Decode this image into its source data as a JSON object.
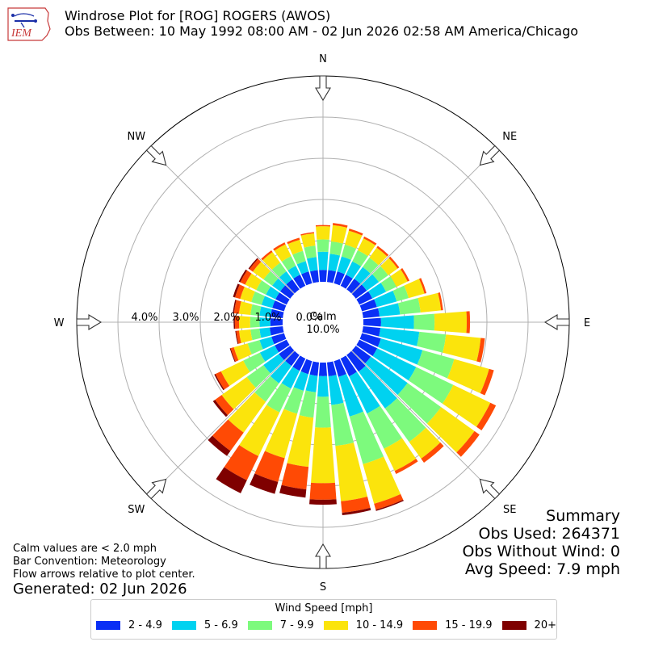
{
  "header": {
    "title": "Windrose Plot for [ROG] ROGERS (AWOS)",
    "subtitle": "Obs Between: 10 May 1992 08:00 AM - 02 Jun 2026 02:58 AM America/Chicago",
    "logo_text": "IEM"
  },
  "notes": {
    "calm_note": "Calm values are < 2.0 mph",
    "bar_convention": "Bar Convention: Meteorology",
    "flow_note": "Flow arrows relative to plot center.",
    "generated": "Generated: 02 Jun 2026"
  },
  "summary": {
    "heading": "Summary",
    "obs_used": "Obs Used: 264371",
    "obs_without_wind": "Obs Without Wind: 0",
    "avg_speed": "Avg Speed: 7.9 mph"
  },
  "legend": {
    "title": "Wind Speed [mph]",
    "items": [
      {
        "label": "2 - 4.9",
        "color": "#0a2ff5"
      },
      {
        "label": "5 - 6.9",
        "color": "#00d2f0"
      },
      {
        "label": "7 - 9.9",
        "color": "#7dfa7d"
      },
      {
        "label": "10 - 14.9",
        "color": "#fbe40c"
      },
      {
        "label": "15 - 19.9",
        "color": "#ff4a05"
      },
      {
        "label": "20+",
        "color": "#7f0000"
      }
    ]
  },
  "chart_data": {
    "type": "windrose",
    "calm_label": "Calm",
    "calm_value": "10.0%",
    "radial_tick_labels": [
      "0.0%",
      "1.0%",
      "2.0%",
      "3.0%",
      "4.0%"
    ],
    "radial_ticks": [
      0,
      1,
      2,
      3,
      4
    ],
    "rmax": 5,
    "directions": [
      "N",
      "NE",
      "E",
      "SE",
      "S",
      "SW",
      "W",
      "NW"
    ],
    "bin_labels": [
      "2 - 4.9",
      "5 - 6.9",
      "7 - 9.9",
      "10 - 14.9",
      "15 - 19.9",
      "20+"
    ],
    "sectors": [
      {
        "dir": 0,
        "values": [
          0.29,
          0.44,
          0.3,
          0.32,
          0.03,
          0.0
        ]
      },
      {
        "dir": 10,
        "values": [
          0.29,
          0.4,
          0.3,
          0.4,
          0.05,
          0.0
        ]
      },
      {
        "dir": 20,
        "values": [
          0.3,
          0.38,
          0.3,
          0.35,
          0.05,
          0.0
        ]
      },
      {
        "dir": 30,
        "values": [
          0.3,
          0.36,
          0.3,
          0.32,
          0.05,
          0.0
        ]
      },
      {
        "dir": 40,
        "values": [
          0.32,
          0.35,
          0.28,
          0.3,
          0.05,
          0.0
        ]
      },
      {
        "dir": 50,
        "values": [
          0.33,
          0.36,
          0.28,
          0.28,
          0.05,
          0.0
        ]
      },
      {
        "dir": 60,
        "values": [
          0.35,
          0.37,
          0.28,
          0.3,
          0.05,
          0.0
        ]
      },
      {
        "dir": 70,
        "values": [
          0.38,
          0.5,
          0.3,
          0.4,
          0.05,
          0.0
        ]
      },
      {
        "dir": 80,
        "values": [
          0.4,
          0.5,
          0.5,
          0.5,
          0.05,
          0.0
        ]
      },
      {
        "dir": 90,
        "values": [
          0.43,
          0.8,
          0.5,
          0.78,
          0.08,
          0.0
        ]
      },
      {
        "dir": 100,
        "values": [
          0.42,
          0.95,
          0.65,
          0.85,
          0.1,
          0.0
        ]
      },
      {
        "dir": 110,
        "values": [
          0.48,
          1.05,
          0.8,
          0.88,
          0.12,
          0.0
        ]
      },
      {
        "dir": 120,
        "values": [
          0.48,
          1.05,
          1.0,
          1.0,
          0.15,
          0.0
        ]
      },
      {
        "dir": 130,
        "values": [
          0.45,
          1.1,
          1.0,
          1.0,
          0.15,
          0.0
        ]
      },
      {
        "dir": 140,
        "values": [
          0.5,
          1.1,
          1.0,
          0.5,
          0.12,
          0.0
        ]
      },
      {
        "dir": 150,
        "values": [
          0.48,
          1.0,
          0.95,
          0.6,
          0.08,
          0.0
        ]
      },
      {
        "dir": 160,
        "values": [
          0.4,
          1.0,
          1.2,
          1.0,
          0.15,
          0.03
        ]
      },
      {
        "dir": 170,
        "values": [
          0.34,
          0.7,
          1.0,
          1.35,
          0.28,
          0.06
        ]
      },
      {
        "dir": 180,
        "values": [
          0.33,
          0.5,
          0.75,
          1.35,
          0.4,
          0.12
        ]
      },
      {
        "dir": 190,
        "values": [
          0.33,
          0.4,
          0.62,
          1.2,
          0.55,
          0.2
        ]
      },
      {
        "dir": 200,
        "values": [
          0.33,
          0.42,
          0.58,
          1.12,
          0.6,
          0.3
        ]
      },
      {
        "dir": 210,
        "values": [
          0.33,
          0.48,
          0.64,
          1.18,
          0.65,
          0.35
        ]
      },
      {
        "dir": 220,
        "values": [
          0.33,
          0.52,
          0.55,
          0.92,
          0.55,
          0.15
        ]
      },
      {
        "dir": 230,
        "values": [
          0.34,
          0.46,
          0.5,
          0.75,
          0.2,
          0.06
        ]
      },
      {
        "dir": 240,
        "values": [
          0.32,
          0.4,
          0.45,
          0.6,
          0.15,
          0.03
        ]
      },
      {
        "dir": 250,
        "values": [
          0.32,
          0.3,
          0.3,
          0.35,
          0.08,
          0.02
        ]
      },
      {
        "dir": 260,
        "values": [
          0.32,
          0.25,
          0.22,
          0.28,
          0.07,
          0.02
        ]
      },
      {
        "dir": 270,
        "values": [
          0.3,
          0.26,
          0.23,
          0.27,
          0.1,
          0.03
        ]
      },
      {
        "dir": 280,
        "values": [
          0.3,
          0.27,
          0.22,
          0.28,
          0.12,
          0.03
        ]
      },
      {
        "dir": 290,
        "values": [
          0.3,
          0.27,
          0.26,
          0.28,
          0.13,
          0.05
        ]
      },
      {
        "dir": 300,
        "values": [
          0.3,
          0.26,
          0.26,
          0.3,
          0.13,
          0.04
        ]
      },
      {
        "dir": 310,
        "values": [
          0.3,
          0.24,
          0.26,
          0.32,
          0.1,
          0.03
        ]
      },
      {
        "dir": 320,
        "values": [
          0.3,
          0.24,
          0.26,
          0.32,
          0.05,
          0.0
        ]
      },
      {
        "dir": 330,
        "values": [
          0.3,
          0.24,
          0.26,
          0.32,
          0.05,
          0.0
        ]
      },
      {
        "dir": 340,
        "values": [
          0.3,
          0.26,
          0.26,
          0.28,
          0.05,
          0.0
        ]
      },
      {
        "dir": 350,
        "values": [
          0.29,
          0.32,
          0.28,
          0.3,
          0.03,
          0.0
        ]
      }
    ]
  }
}
